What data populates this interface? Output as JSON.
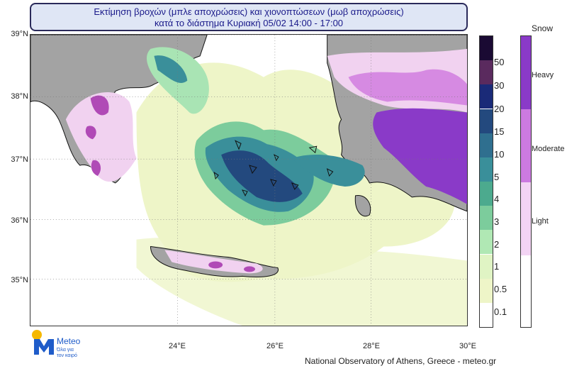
{
  "title": {
    "line1": "Εκτίμηση βροχών (μπλε αποχρώσεις) και χιονοπτώσεων (μωβ αποχρώσεις)",
    "line2": "κατά το διάστημα Κυριακή 05/02 14:00 - 17:00"
  },
  "lat_labels": [
    "39°N",
    "38°N",
    "37°N",
    "36°N",
    "35°N"
  ],
  "lon_labels": [
    "24°E",
    "26°E",
    "28°E",
    "30°E"
  ],
  "rain_scale": {
    "labels": [
      "50",
      "30",
      "20",
      "15",
      "10",
      "5",
      "4",
      "3",
      "2",
      "1",
      "0.5",
      "0.1"
    ],
    "colors": [
      "#1a0a33",
      "#5a2a5e",
      "#1a2a78",
      "#23497e",
      "#2f6f8f",
      "#3a8f9a",
      "#4caa8e",
      "#7ccc9c",
      "#b0e8b4",
      "#e0f4c4",
      "#eef5c8",
      "#ffffff"
    ]
  },
  "snow_scale": {
    "title": "Snow",
    "labels": [
      "Heavy",
      "Moderate",
      "Light"
    ],
    "colors": [
      "#8a3ac8",
      "#cc7ae0",
      "#f3d4f4"
    ]
  },
  "logo": {
    "name": "Meteo",
    "tagline_1": "Όλα για",
    "tagline_2": "τον καιρό",
    "colors": {
      "blue": "#1f5cc9",
      "yellow": "#f5b800"
    }
  },
  "credit": "National Observatory of Athens, Greece - meteo.gr",
  "colors": {
    "land": "#a3a3a3",
    "sea": "#ffffff",
    "frame": "#333333"
  }
}
